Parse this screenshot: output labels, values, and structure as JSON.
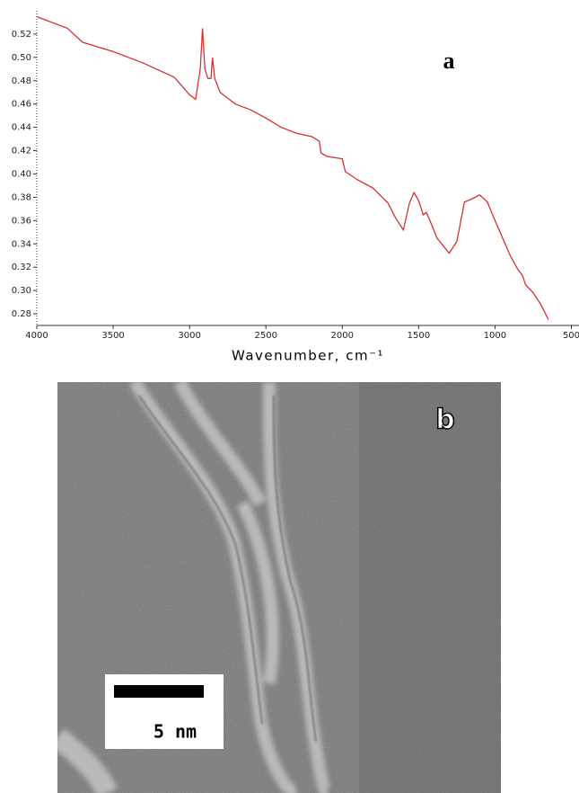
{
  "chart_data": {
    "type": "line",
    "panel_label": "a",
    "xlabel": "Wavenumber, cm⁻¹",
    "x": [
      4000,
      3800,
      3700,
      3500,
      3300,
      3100,
      3000,
      2960,
      2930,
      2915,
      2900,
      2880,
      2860,
      2850,
      2835,
      2800,
      2700,
      2600,
      2500,
      2400,
      2300,
      2200,
      2150,
      2140,
      2100,
      2000,
      1980,
      1900,
      1800,
      1700,
      1650,
      1600,
      1560,
      1530,
      1500,
      1470,
      1450,
      1420,
      1380,
      1300,
      1250,
      1200,
      1160,
      1100,
      1050,
      1000,
      950,
      900,
      850,
      820,
      800,
      750,
      700,
      650
    ],
    "values": [
      0.535,
      0.525,
      0.513,
      0.505,
      0.495,
      0.483,
      0.468,
      0.464,
      0.49,
      0.525,
      0.49,
      0.482,
      0.482,
      0.5,
      0.482,
      0.47,
      0.46,
      0.455,
      0.448,
      0.44,
      0.435,
      0.432,
      0.428,
      0.418,
      0.415,
      0.413,
      0.402,
      0.395,
      0.388,
      0.375,
      0.362,
      0.352,
      0.375,
      0.384,
      0.377,
      0.365,
      0.367,
      0.358,
      0.345,
      0.332,
      0.342,
      0.376,
      0.378,
      0.382,
      0.376,
      0.36,
      0.345,
      0.33,
      0.318,
      0.313,
      0.305,
      0.298,
      0.288,
      0.275
    ],
    "color": "#d03232",
    "xlim": [
      4000,
      450
    ],
    "xticks": [
      4000,
      3500,
      3000,
      2500,
      2000,
      1500,
      1000,
      500
    ],
    "ylim": [
      0.27,
      0.54
    ],
    "yticks": [
      0.28,
      {
        "value": 0.3,
        "label": "0.30"
      },
      0.32,
      0.34,
      0.36,
      0.38,
      {
        "value": 0.4,
        "label": "0.40"
      },
      0.42,
      0.44,
      0.46,
      0.48,
      {
        "value": 0.5,
        "label": "0.50"
      },
      0.52
    ]
  },
  "image": {
    "panel_label": "b",
    "scale_bar": "5 nm"
  }
}
